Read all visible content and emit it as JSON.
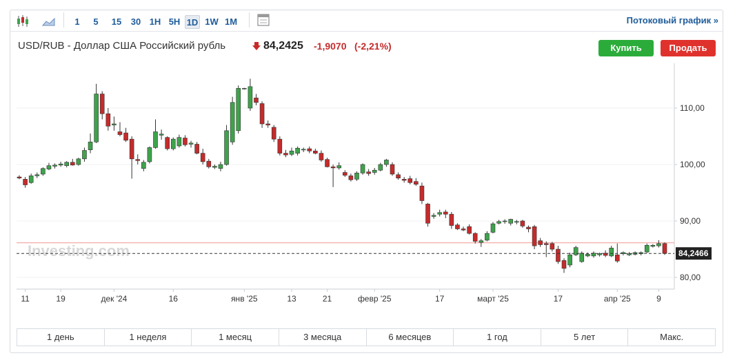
{
  "toolbar": {
    "intervals": [
      "1",
      "5",
      "15",
      "30",
      "1H",
      "5H",
      "1D",
      "1W",
      "1M"
    ],
    "active_interval": "1D",
    "streaming_link": "Потоковый график »"
  },
  "quote": {
    "pair": "USD/RUB - Доллар США Российский рубль",
    "price": "84,2425",
    "change": "-1,9070",
    "change_percent": "(-2,21%)"
  },
  "actions": {
    "buy": "Купить",
    "sell": "Продать"
  },
  "watermark": "Investing.com",
  "ranges": [
    "1 день",
    "1 неделя",
    "1 месяц",
    "3 месяца",
    "6 месяцев",
    "1 год",
    "5 лет",
    "Макс."
  ],
  "chart_data": {
    "type": "candlestick",
    "categories": [
      null,
      "11",
      null,
      null,
      null,
      null,
      null,
      "19",
      null,
      null,
      null,
      null,
      null,
      null,
      null,
      null,
      "дек '24",
      null,
      null,
      null,
      null,
      null,
      null,
      null,
      null,
      null,
      "16",
      null,
      null,
      null,
      null,
      null,
      null,
      null,
      null,
      null,
      null,
      null,
      "янв '25",
      null,
      null,
      null,
      null,
      null,
      null,
      null,
      "13",
      null,
      null,
      null,
      null,
      null,
      "21",
      null,
      null,
      null,
      null,
      null,
      null,
      null,
      "февр '25",
      null,
      null,
      null,
      null,
      null,
      null,
      null,
      null,
      null,
      null,
      "17",
      null,
      null,
      null,
      null,
      null,
      null,
      null,
      null,
      "март '25",
      null,
      null,
      null,
      null,
      null,
      null,
      null,
      null,
      null,
      null,
      "17",
      null,
      null,
      null,
      null,
      null,
      null,
      null,
      null,
      null,
      "апр '25",
      null,
      null,
      null,
      null,
      null,
      null,
      "9",
      null
    ],
    "open": [
      97.8,
      97.4,
      96.8,
      98.0,
      98.3,
      99.2,
      99.7,
      99.9,
      99.8,
      100.4,
      100.0,
      101.0,
      102.6,
      104.0,
      112.5,
      109.0,
      107.0,
      105.8,
      105.6,
      104.5,
      100.9,
      99.3,
      100.5,
      103.0,
      105.2,
      104.8,
      102.8,
      103.3,
      104.7,
      103.6,
      103.6,
      102.0,
      100.6,
      99.5,
      99.3,
      100.0,
      104.0,
      106.0,
      113.4,
      110.0,
      111.8,
      110.8,
      107.2,
      106.6,
      104.5,
      102.0,
      101.8,
      102.0,
      102.6,
      102.8,
      102.4,
      102.0,
      100.9,
      99.6,
      99.4,
      98.6,
      98.0,
      97.4,
      98.5,
      98.7,
      98.6,
      99.0,
      100.0,
      100.0,
      98.2,
      97.4,
      97.5,
      97.0,
      96.2,
      93.0,
      90.8,
      91.2,
      91.6,
      91.2,
      89.3,
      88.6,
      89.0,
      87.8,
      86.2,
      86.6,
      88.0,
      89.6,
      89.9,
      89.6,
      89.8,
      90.0,
      88.9,
      89.0,
      86.5,
      86.0,
      86.0,
      85.0,
      83.0,
      82.2,
      84.0,
      82.8,
      83.8,
      83.8,
      84.0,
      84.3,
      83.8,
      84.0,
      84.2,
      84.0,
      84.1,
      84.2,
      84.5,
      85.5,
      85.6,
      86.0
    ],
    "high": [
      98.1,
      97.8,
      98.4,
      98.6,
      99.5,
      100.3,
      100.2,
      100.5,
      100.6,
      101.0,
      101.2,
      103.0,
      105.5,
      114.3,
      113.0,
      110.0,
      108.5,
      107.5,
      106.5,
      105.0,
      101.8,
      100.8,
      103.2,
      108.0,
      106.2,
      105.0,
      104.8,
      105.3,
      105.2,
      104.2,
      104.0,
      102.8,
      101.0,
      100.0,
      100.5,
      107.0,
      112.0,
      114.0,
      113.6,
      115.2,
      112.5,
      111.2,
      107.8,
      107.0,
      105.0,
      102.6,
      103.0,
      103.2,
      103.0,
      103.2,
      102.8,
      102.5,
      101.2,
      100.0,
      100.4,
      99.0,
      98.4,
      98.8,
      100.2,
      99.2,
      99.4,
      100.3,
      101.0,
      100.4,
      98.6,
      97.8,
      98.0,
      97.6,
      96.8,
      93.2,
      91.4,
      92.0,
      92.0,
      91.6,
      89.6,
      89.0,
      89.4,
      88.0,
      86.8,
      88.2,
      89.8,
      90.2,
      90.3,
      90.4,
      90.2,
      90.2,
      89.2,
      89.3,
      87.0,
      86.4,
      86.3,
      85.6,
      83.4,
      84.4,
      85.6,
      84.6,
      84.4,
      84.6,
      84.4,
      84.8,
      85.6,
      86.0,
      84.6,
      84.5,
      84.6,
      84.6,
      86.0,
      85.9,
      86.6,
      86.2
    ],
    "low": [
      97.4,
      95.9,
      96.6,
      97.6,
      98.0,
      99.0,
      99.3,
      99.6,
      99.5,
      99.8,
      99.8,
      100.5,
      102.0,
      103.8,
      108.0,
      106.0,
      106.0,
      105.0,
      104.0,
      97.5,
      100.0,
      98.8,
      100.2,
      102.8,
      104.4,
      102.5,
      102.5,
      103.0,
      103.2,
      103.0,
      101.8,
      100.0,
      99.3,
      99.2,
      98.8,
      99.8,
      103.5,
      105.5,
      113.3,
      109.5,
      110.5,
      106.5,
      106.5,
      104.0,
      101.6,
      101.3,
      101.5,
      101.6,
      102.2,
      102.0,
      101.8,
      100.5,
      99.5,
      96.0,
      99.1,
      97.8,
      97.0,
      97.1,
      98.2,
      98.0,
      98.2,
      98.8,
      99.6,
      98.0,
      97.3,
      96.8,
      96.5,
      96.2,
      93.0,
      89.0,
      90.4,
      90.8,
      90.5,
      88.6,
      88.4,
      88.2,
      87.6,
      86.0,
      85.4,
      86.4,
      87.8,
      89.4,
      89.5,
      89.2,
      89.4,
      88.8,
      88.0,
      85.0,
      85.4,
      83.6,
      84.6,
      82.4,
      80.8,
      81.8,
      83.8,
      82.6,
      83.6,
      83.5,
      83.7,
      83.6,
      83.6,
      82.6,
      83.9,
      83.8,
      83.9,
      83.9,
      84.3,
      85.3,
      85.3,
      84.0
    ],
    "close": [
      97.6,
      96.4,
      98.0,
      98.2,
      99.3,
      99.8,
      99.9,
      100.1,
      100.4,
      99.9,
      101.0,
      102.5,
      104.0,
      112.5,
      109.0,
      106.8,
      107.2,
      105.3,
      104.3,
      101.0,
      100.7,
      100.4,
      103.0,
      105.8,
      105.4,
      102.8,
      104.5,
      104.8,
      103.5,
      103.8,
      102.0,
      100.5,
      99.6,
      99.7,
      100.0,
      106.0,
      111.0,
      113.5,
      113.5,
      113.8,
      111.0,
      107.2,
      107.0,
      104.5,
      102.0,
      101.7,
      102.4,
      102.9,
      102.7,
      102.4,
      102.0,
      100.8,
      99.6,
      99.4,
      99.8,
      98.1,
      97.3,
      98.5,
      100.0,
      98.4,
      99.0,
      100.0,
      100.8,
      98.3,
      97.6,
      97.2,
      96.8,
      96.5,
      93.6,
      89.6,
      91.0,
      91.5,
      91.2,
      89.2,
      88.6,
      88.4,
      87.8,
      86.4,
      86.5,
      87.8,
      89.5,
      89.9,
      90.0,
      90.3,
      89.9,
      89.1,
      88.6,
      85.6,
      85.8,
      85.8,
      85.0,
      82.8,
      81.6,
      84.0,
      85.3,
      84.3,
      84.1,
      84.3,
      84.2,
      83.9,
      85.2,
      82.9,
      84.4,
      84.2,
      84.4,
      84.4,
      85.7,
      85.7,
      86.0,
      84.25
    ],
    "up_color": "#3ea34b",
    "down_color": "#c52b2b",
    "ylim": [
      77.93,
      117.93
    ],
    "yticks": [
      {
        "value": 80,
        "label": "80,00"
      },
      {
        "value": 90,
        "label": "90,00"
      },
      {
        "value": 100,
        "label": "100,00"
      },
      {
        "value": 110,
        "label": "110,00"
      }
    ],
    "grid": true,
    "last_price": {
      "value": 84.2466,
      "label": "84,2466"
    },
    "previous_close": 86.15
  }
}
